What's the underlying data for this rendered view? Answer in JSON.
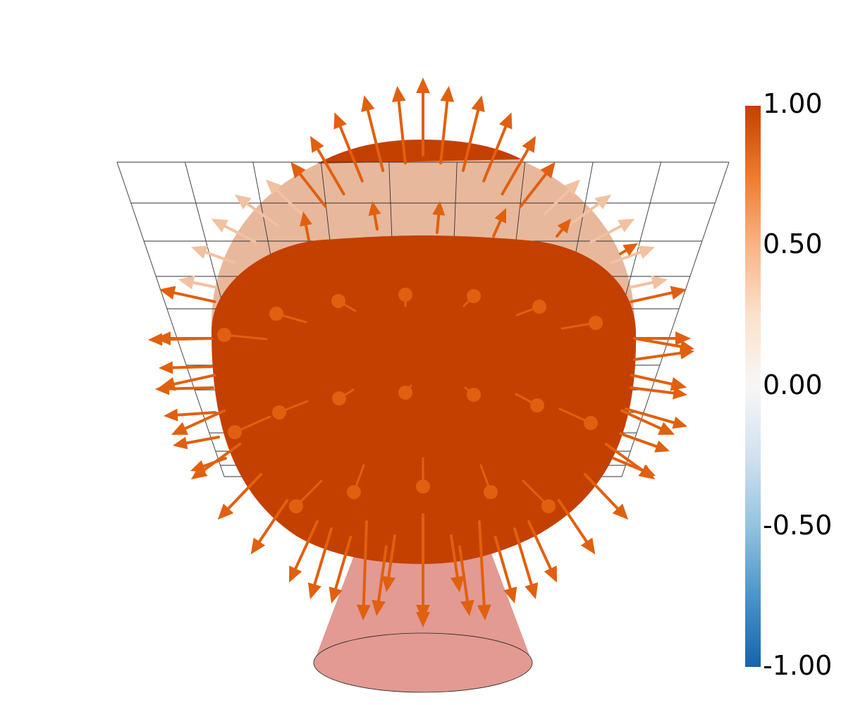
{
  "colorbar": {
    "labels": [
      "1.00",
      "0.50",
      "0.00",
      "-0.50",
      "-1.00"
    ],
    "range": [
      -1.0,
      1.0
    ],
    "stops": [
      {
        "value": 1.0,
        "color": "#c44000"
      },
      {
        "value": 0.75,
        "color": "#f07a2c"
      },
      {
        "value": 0.5,
        "color": "#f8b488"
      },
      {
        "value": 0.25,
        "color": "#fbe2cc"
      },
      {
        "value": 0.0,
        "color": "#f7f7f7"
      },
      {
        "value": -0.25,
        "color": "#d2e1f0"
      },
      {
        "value": -0.5,
        "color": "#93c3df"
      },
      {
        "value": -0.75,
        "color": "#4a94c8"
      },
      {
        "value": -1.0,
        "color": "#1763ab"
      }
    ]
  },
  "scene": {
    "background": "#ffffff",
    "main_body_color": "#c44000",
    "rear_shell_color": "#e8b89c",
    "base_cone_color": "#e29a92",
    "arrow_color": "#e0600f",
    "arrow_faded_color": "#f2c1a0",
    "grid_color": "#333333",
    "objects": [
      "grid-plane",
      "rear-shell",
      "main-body",
      "base-cone",
      "vector-arrows"
    ]
  }
}
